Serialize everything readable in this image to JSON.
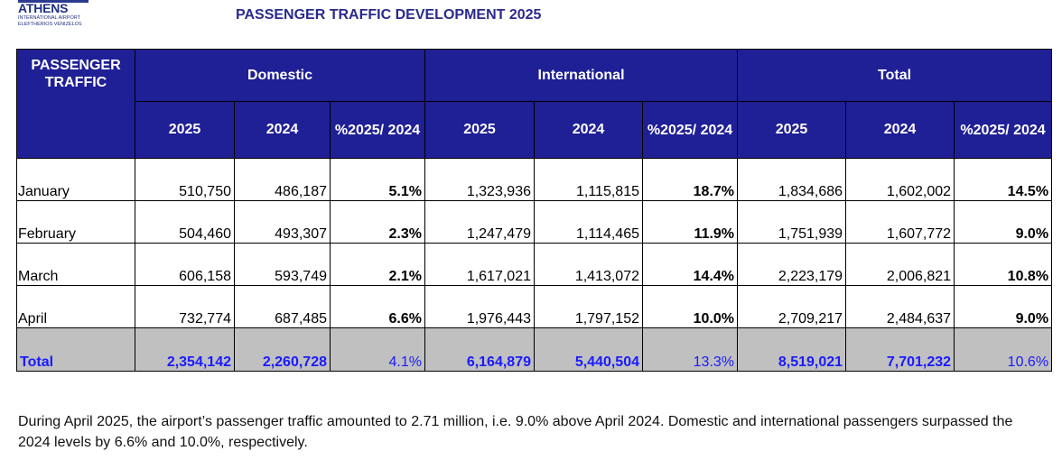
{
  "logo": {
    "name": "ATHENS",
    "sub1": "INTERNATIONAL AIRPORT",
    "sub2": "ELEFTHERIOS VENIZELOS"
  },
  "title": "PASSENGER TRAFFIC DEVELOPMENT 2025",
  "table": {
    "corner_header": "PASSENGER TRAFFIC",
    "groups": [
      "Domestic",
      "International",
      "Total"
    ],
    "subheaders": [
      "2025",
      "2024",
      "%2025/ 2024",
      "2025",
      "2024",
      "%2025/ 2024",
      "2025",
      "2024",
      "%2025/ 2024"
    ],
    "rows": [
      {
        "month": "January",
        "cells": [
          "510,750",
          "486,187",
          "5.1%",
          "1,323,936",
          "1,115,815",
          "18.7%",
          "1,834,686",
          "1,602,002",
          "14.5%"
        ]
      },
      {
        "month": "February",
        "cells": [
          "504,460",
          "493,307",
          "2.3%",
          "1,247,479",
          "1,114,465",
          "11.9%",
          "1,751,939",
          "1,607,772",
          "9.0%"
        ]
      },
      {
        "month": "March",
        "cells": [
          "606,158",
          "593,749",
          "2.1%",
          "1,617,021",
          "1,413,072",
          "14.4%",
          "2,223,179",
          "2,006,821",
          "10.8%"
        ]
      },
      {
        "month": "April",
        "cells": [
          "732,774",
          "687,485",
          "6.6%",
          "1,976,443",
          "1,797,152",
          "10.0%",
          "2,709,217",
          "2,484,637",
          "9.0%"
        ]
      }
    ],
    "total": {
      "label": "Total",
      "cells": [
        "2,354,142",
        "2,260,728",
        "4.1%",
        "6,164,879",
        "5,440,504",
        "13.3%",
        "8,519,021",
        "7,701,232",
        "10.6%"
      ]
    }
  },
  "footnote": "During April 2025, the airport’s passenger traffic amounted to 2.71 million, i.e. 9.0% above April 2024. Domestic and international passengers surpassed the 2024 levels by 6.6% and 10.0%, respectively.",
  "colors": {
    "header_bg": "#1f1f96",
    "total_bg": "#c0c0c0",
    "total_text": "#1a1aff",
    "title_text": "#2a2a8c"
  }
}
